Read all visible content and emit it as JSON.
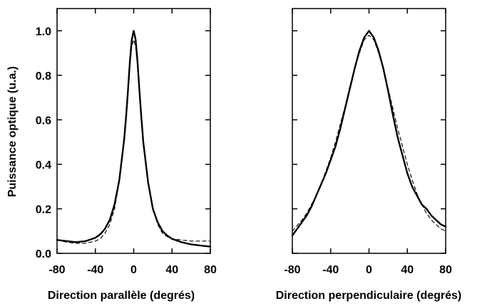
{
  "chart_data": [
    {
      "type": "line",
      "xlabel": "Direction parallèle (degrés)",
      "ylabel": "Puissance optique (u.a.)",
      "xlim": [
        -80,
        80
      ],
      "ylim": [
        0,
        1.1
      ],
      "x_ticks": [
        "-80",
        "-40",
        "0",
        "40",
        "80"
      ],
      "y_ticks": [
        "0.0",
        "0.2",
        "0.4",
        "0.6",
        "0.8",
        "1.0"
      ],
      "series": [
        {
          "style": "solid",
          "x": [
            -80,
            -70,
            -60,
            -50,
            -40,
            -35,
            -30,
            -25,
            -20,
            -15,
            -10,
            -8,
            -6,
            -4,
            -2,
            0,
            2,
            4,
            6,
            8,
            10,
            15,
            20,
            25,
            30,
            35,
            40,
            50,
            60,
            70,
            80
          ],
          "y": [
            0.06,
            0.055,
            0.05,
            0.055,
            0.07,
            0.085,
            0.11,
            0.15,
            0.22,
            0.33,
            0.51,
            0.61,
            0.73,
            0.86,
            0.96,
            1.0,
            0.96,
            0.86,
            0.73,
            0.61,
            0.5,
            0.32,
            0.2,
            0.14,
            0.1,
            0.08,
            0.065,
            0.05,
            0.04,
            0.035,
            0.03
          ]
        },
        {
          "style": "dashed",
          "x": [
            -80,
            -70,
            -60,
            -50,
            -40,
            -35,
            -30,
            -25,
            -20,
            -15,
            -10,
            -8,
            -6,
            -4,
            -2,
            0,
            2,
            4,
            6,
            8,
            10,
            15,
            20,
            25,
            30,
            35,
            40,
            50,
            60,
            70,
            80
          ],
          "y": [
            0.06,
            0.05,
            0.045,
            0.045,
            0.055,
            0.065,
            0.09,
            0.13,
            0.2,
            0.32,
            0.5,
            0.6,
            0.72,
            0.84,
            0.93,
            0.96,
            0.93,
            0.84,
            0.72,
            0.6,
            0.5,
            0.32,
            0.2,
            0.13,
            0.09,
            0.075,
            0.065,
            0.06,
            0.055,
            0.055,
            0.055
          ]
        }
      ]
    },
    {
      "type": "line",
      "xlabel": "Direction perpendiculaire (degrés)",
      "ylabel": "",
      "xlim": [
        -80,
        80
      ],
      "ylim": [
        0,
        1.1
      ],
      "x_ticks": [
        "-80",
        "-40",
        "0",
        "40",
        "80"
      ],
      "y_ticks": [],
      "series": [
        {
          "style": "solid",
          "x": [
            -80,
            -75,
            -70,
            -65,
            -60,
            -55,
            -50,
            -45,
            -40,
            -35,
            -30,
            -25,
            -20,
            -15,
            -10,
            -5,
            0,
            5,
            10,
            15,
            20,
            25,
            30,
            35,
            40,
            45,
            50,
            55,
            60,
            65,
            70,
            75,
            80
          ],
          "y": [
            0.08,
            0.11,
            0.14,
            0.17,
            0.21,
            0.26,
            0.31,
            0.36,
            0.42,
            0.48,
            0.56,
            0.65,
            0.74,
            0.83,
            0.91,
            0.97,
            1.0,
            0.97,
            0.91,
            0.83,
            0.73,
            0.62,
            0.52,
            0.44,
            0.36,
            0.3,
            0.26,
            0.22,
            0.2,
            0.17,
            0.15,
            0.13,
            0.12
          ]
        },
        {
          "style": "dashed",
          "x": [
            -80,
            -75,
            -70,
            -65,
            -60,
            -55,
            -50,
            -45,
            -40,
            -35,
            -30,
            -25,
            -20,
            -15,
            -10,
            -5,
            0,
            5,
            10,
            15,
            20,
            25,
            30,
            35,
            40,
            45,
            50,
            55,
            60,
            65,
            70,
            75,
            80
          ],
          "y": [
            0.1,
            0.125,
            0.15,
            0.18,
            0.22,
            0.26,
            0.31,
            0.37,
            0.43,
            0.5,
            0.58,
            0.66,
            0.75,
            0.83,
            0.9,
            0.96,
            0.98,
            0.96,
            0.9,
            0.83,
            0.74,
            0.65,
            0.56,
            0.48,
            0.4,
            0.33,
            0.27,
            0.22,
            0.18,
            0.15,
            0.13,
            0.11,
            0.1
          ]
        }
      ]
    }
  ]
}
